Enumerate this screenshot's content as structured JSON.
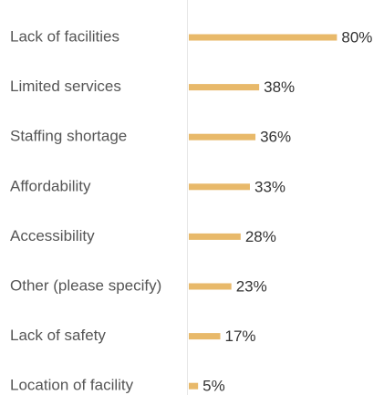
{
  "chart_data": {
    "type": "bar",
    "orientation": "horizontal",
    "categories": [
      "Lack of facilities",
      "Limited services",
      "Staffing shortage",
      "Affordability",
      "Accessibility",
      "Other (please specify)",
      "Lack of safety",
      "Location of facility"
    ],
    "values": [
      80,
      38,
      36,
      33,
      28,
      23,
      17,
      5
    ],
    "value_labels": [
      "80%",
      "38%",
      "36%",
      "33%",
      "28%",
      "23%",
      "17%",
      "5%"
    ],
    "color": "#e8b96a",
    "xlim": [
      0,
      100
    ]
  }
}
